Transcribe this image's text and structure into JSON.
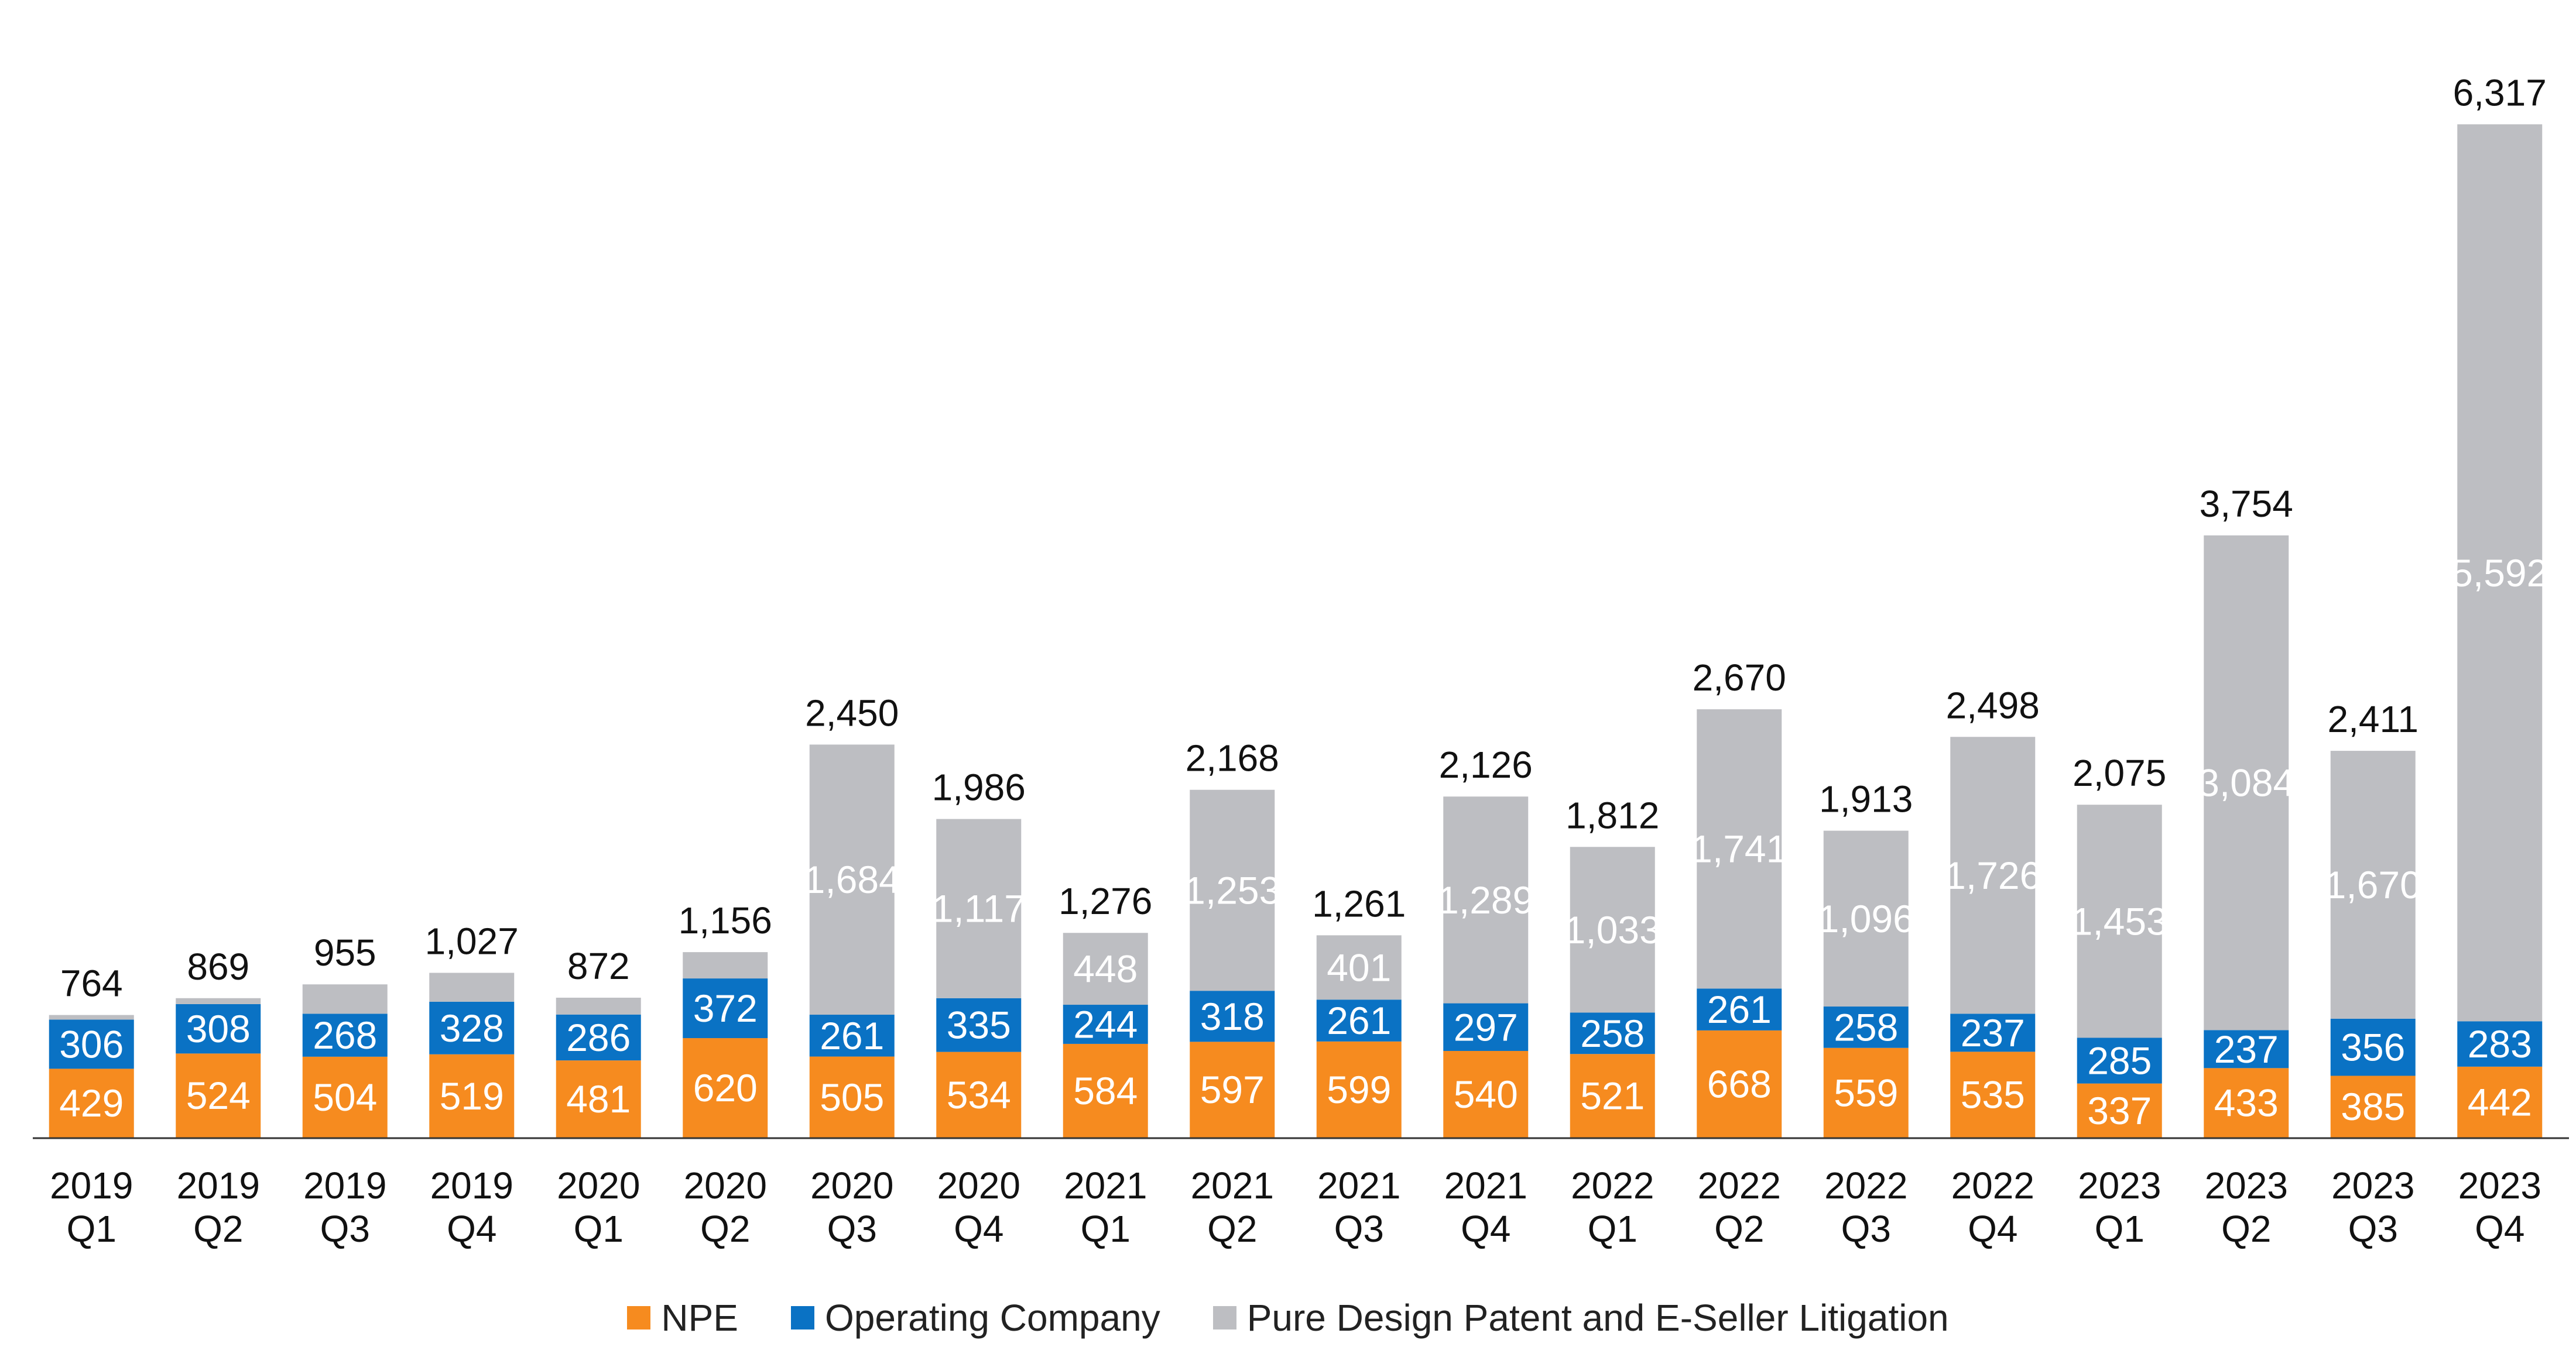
{
  "chart_data": {
    "type": "bar",
    "stacked": true,
    "categories": [
      [
        "2019",
        "Q1"
      ],
      [
        "2019",
        "Q2"
      ],
      [
        "2019",
        "Q3"
      ],
      [
        "2019",
        "Q4"
      ],
      [
        "2020",
        "Q1"
      ],
      [
        "2020",
        "Q2"
      ],
      [
        "2020",
        "Q3"
      ],
      [
        "2020",
        "Q4"
      ],
      [
        "2021",
        "Q1"
      ],
      [
        "2021",
        "Q2"
      ],
      [
        "2021",
        "Q3"
      ],
      [
        "2021",
        "Q4"
      ],
      [
        "2022",
        "Q1"
      ],
      [
        "2022",
        "Q2"
      ],
      [
        "2022",
        "Q3"
      ],
      [
        "2022",
        "Q4"
      ],
      [
        "2023",
        "Q1"
      ],
      [
        "2023",
        "Q2"
      ],
      [
        "2023",
        "Q3"
      ],
      [
        "2023",
        "Q4"
      ]
    ],
    "series": [
      {
        "name": "NPE",
        "color": "#F68B1F",
        "values": [
          429,
          524,
          504,
          519,
          481,
          620,
          505,
          534,
          584,
          597,
          599,
          540,
          521,
          668,
          559,
          535,
          337,
          433,
          385,
          442
        ]
      },
      {
        "name": "Operating Company",
        "color": "#0A72C4",
        "values": [
          306,
          308,
          268,
          328,
          286,
          372,
          261,
          335,
          244,
          318,
          261,
          297,
          258,
          261,
          258,
          237,
          285,
          237,
          356,
          283
        ]
      },
      {
        "name": "Pure Design Patent and E-Seller Litigation",
        "color": "#BDBEC2",
        "values": [
          29,
          37,
          183,
          180,
          105,
          164,
          1684,
          1117,
          448,
          1253,
          401,
          1289,
          1033,
          1741,
          1096,
          1726,
          1453,
          3084,
          1670,
          5592
        ]
      }
    ],
    "segment_labels": [
      [
        "429",
        "524",
        "504",
        "519",
        "481",
        "620",
        "505",
        "534",
        "584",
        "597",
        "599",
        "540",
        "521",
        "668",
        "559",
        "535",
        "337",
        "433",
        "385",
        "442"
      ],
      [
        "306",
        "308",
        "268",
        "328",
        "286",
        "372",
        "261",
        "335",
        "244",
        "318",
        "261",
        "297",
        "258",
        "261",
        "258",
        "237",
        "285",
        "237",
        "356",
        "283"
      ],
      [
        "",
        "",
        "",
        "",
        "",
        "",
        "1,684",
        "1,117",
        "448",
        "1,253",
        "401",
        "1,289",
        "1,033",
        "1,741",
        "1,096",
        "1,726",
        "1,453",
        "3,084",
        "1,670",
        "5,592"
      ]
    ],
    "totals": [
      764,
      869,
      955,
      1027,
      872,
      1156,
      2450,
      1986,
      1276,
      2168,
      1261,
      2126,
      1812,
      2670,
      1913,
      2498,
      2075,
      3754,
      2411,
      6317
    ],
    "total_labels": [
      "764",
      "869",
      "955",
      "1,027",
      "872",
      "1,156",
      "2,450",
      "1,986",
      "1,276",
      "2,168",
      "1,261",
      "2,126",
      "1,812",
      "2,670",
      "1,913",
      "2,498",
      "2,075",
      "3,754",
      "2,411",
      "6,317"
    ],
    "ylim": [
      0,
      6800
    ],
    "title": "",
    "xlabel": "",
    "ylabel": "",
    "grid": false,
    "legend_position": "bottom-center"
  },
  "legend": [
    {
      "label": "NPE",
      "color": "#F68B1F"
    },
    {
      "label": "Operating Company",
      "color": "#0A72C4"
    },
    {
      "label": "Pure Design Patent and E-Seller Litigation",
      "color": "#BDBEC2"
    }
  ]
}
